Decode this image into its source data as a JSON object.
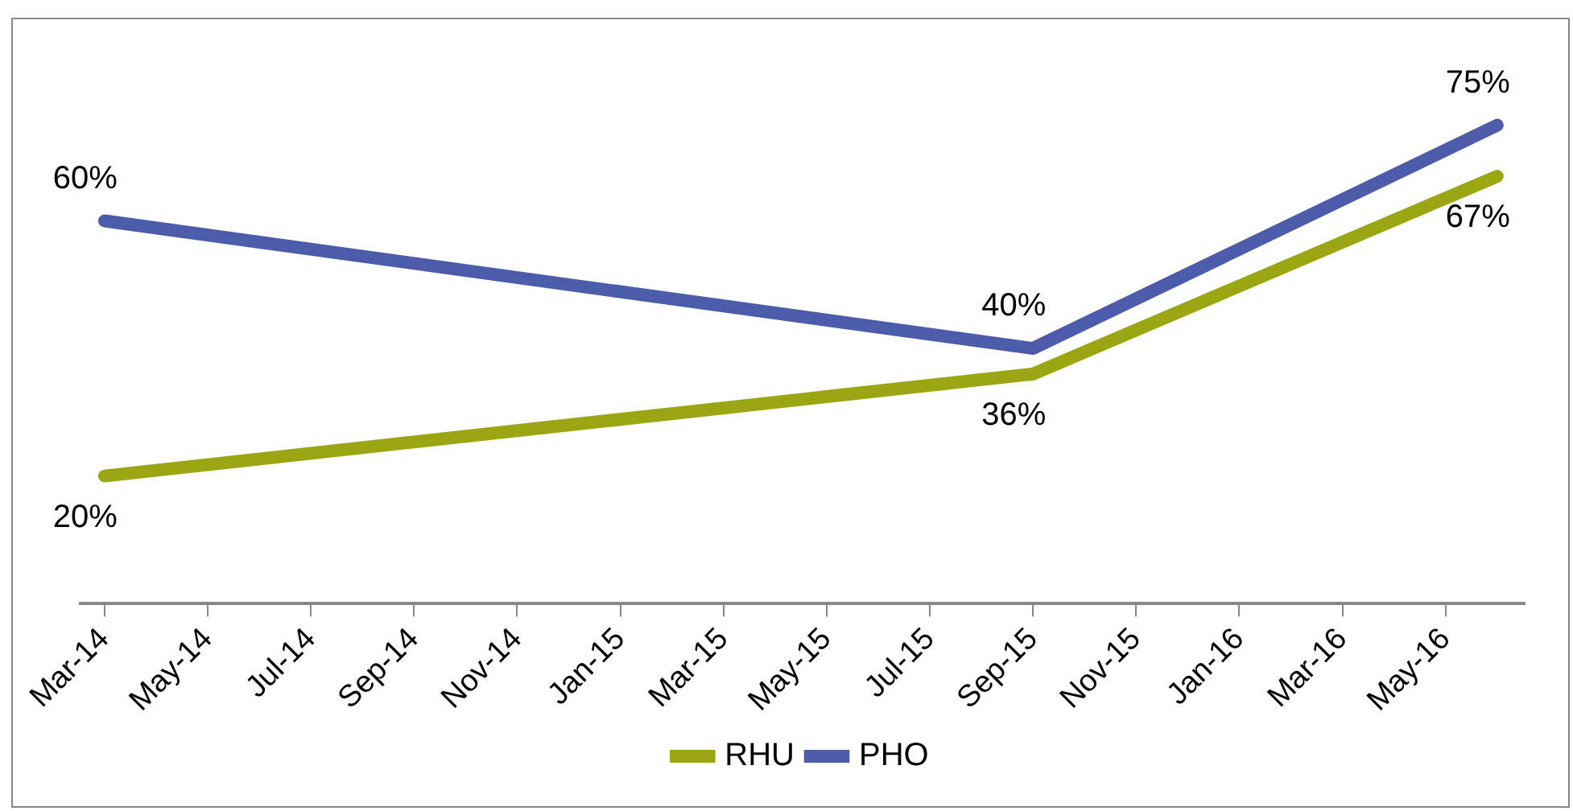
{
  "chart_data": {
    "type": "line",
    "x": [
      "2014-03-15",
      "2015-09-15",
      "2016-06-15"
    ],
    "xlim": [
      "2014-03-01",
      "2016-07-01"
    ],
    "xticks": [
      {
        "value": "2014-03-15",
        "label": "Mar-14"
      },
      {
        "value": "2014-05-15",
        "label": "May-14"
      },
      {
        "value": "2014-07-15",
        "label": "Jul-14"
      },
      {
        "value": "2014-09-15",
        "label": "Sep-14"
      },
      {
        "value": "2014-11-15",
        "label": "Nov-14"
      },
      {
        "value": "2015-01-15",
        "label": "Jan-15"
      },
      {
        "value": "2015-03-15",
        "label": "Mar-15"
      },
      {
        "value": "2015-05-15",
        "label": "May-15"
      },
      {
        "value": "2015-07-15",
        "label": "Jul-15"
      },
      {
        "value": "2015-09-15",
        "label": "Sep-15"
      },
      {
        "value": "2015-11-15",
        "label": "Nov-15"
      },
      {
        "value": "2016-01-15",
        "label": "Jan-16"
      },
      {
        "value": "2016-03-15",
        "label": "Mar-16"
      },
      {
        "value": "2016-05-15",
        "label": "May-16"
      }
    ],
    "series": [
      {
        "name": "RHU",
        "color": "#9ba712",
        "values": [
          20,
          36,
          67
        ],
        "value_labels": [
          "20%",
          "36%",
          "67%"
        ]
      },
      {
        "name": "PHO",
        "color": "#4d5bab",
        "values": [
          60,
          40,
          75
        ],
        "value_labels": [
          "60%",
          "40%",
          "75%"
        ]
      }
    ],
    "tick_labels": "x",
    "grid": false,
    "legend": "bottom",
    "marker": "none",
    "line_style": "solid"
  }
}
